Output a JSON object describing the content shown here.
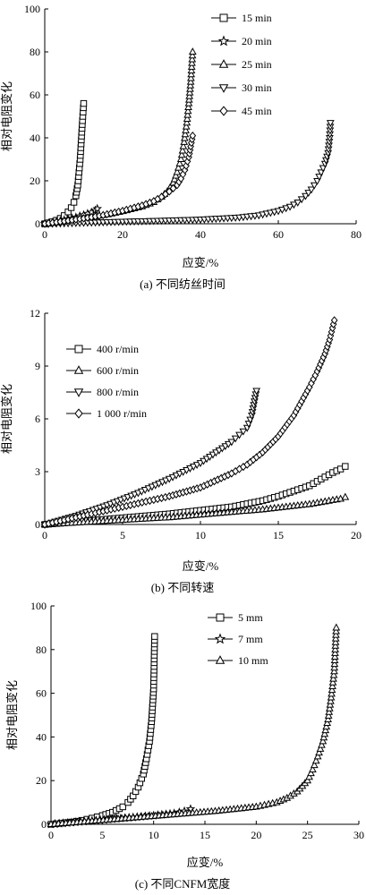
{
  "chart_data": [
    {
      "type": "scatter",
      "caption": "(a) 不同纺丝时间",
      "xlabel": "应变/%",
      "ylabel": "相对电阻变化",
      "xlim": [
        0,
        80
      ],
      "ylim": [
        0,
        100
      ],
      "xticks": [
        "0",
        "20",
        "40",
        "60",
        "80"
      ],
      "yticks": [
        "0",
        "20",
        "40",
        "60",
        "80",
        "100"
      ],
      "legend_position": "top-right",
      "series": [
        {
          "name": "15 min",
          "marker": "square",
          "x": [
            0,
            1,
            2,
            3,
            4,
            5,
            6,
            6.8,
            7.5,
            8,
            8.5,
            8.8,
            9.1,
            9.4,
            9.7,
            10
          ],
          "y": [
            0,
            0.4,
            0.9,
            1.6,
            2.5,
            3.8,
            5.5,
            7.5,
            10,
            13,
            18,
            24,
            30,
            39,
            48,
            56
          ]
        },
        {
          "name": "20 min",
          "marker": "star",
          "x": [
            0,
            2,
            4,
            6,
            8,
            10,
            12,
            13,
            13.5
          ],
          "y": [
            0,
            0.6,
            1.3,
            2.1,
            3,
            4.1,
            5.3,
            6.2,
            7
          ]
        },
        {
          "name": "25 min",
          "marker": "triangle-up",
          "x": [
            0,
            5,
            10,
            15,
            20,
            25,
            28,
            30,
            31.5,
            33,
            34,
            35,
            35.8,
            36.5,
            37,
            37.5,
            38
          ],
          "y": [
            0,
            1.2,
            2.5,
            4,
            5.8,
            8,
            10,
            12.5,
            15,
            19,
            24,
            30,
            38,
            47,
            56,
            66,
            80
          ]
        },
        {
          "name": "30 min",
          "marker": "triangle-down",
          "x": [
            0,
            10,
            20,
            30,
            40,
            50,
            55,
            60,
            63,
            65,
            67,
            68.5,
            70,
            71,
            72,
            72.8,
            73.2,
            73.4
          ],
          "y": [
            0,
            0.5,
            1,
            1.5,
            2,
            3,
            4,
            6,
            8,
            10,
            13,
            16,
            20,
            24,
            28,
            33,
            40,
            47
          ]
        },
        {
          "name": "45 min",
          "marker": "diamond",
          "x": [
            0,
            5,
            10,
            15,
            20,
            25,
            28,
            30,
            32,
            34,
            35,
            36,
            37,
            37.5,
            38
          ],
          "y": [
            0,
            1.2,
            2.5,
            4,
            6,
            8.5,
            10.5,
            12.5,
            15,
            18,
            21,
            25,
            31,
            36,
            41
          ]
        }
      ]
    },
    {
      "type": "scatter",
      "caption": "(b) 不同转速",
      "xlabel": "应变/%",
      "ylabel": "相对电阻变化",
      "xlim": [
        0,
        20
      ],
      "ylim": [
        0,
        12
      ],
      "xticks": [
        "0",
        "5",
        "10",
        "15",
        "20"
      ],
      "yticks": [
        "0",
        "3",
        "6",
        "9",
        "12"
      ],
      "legend_position": "top-left",
      "series": [
        {
          "name": "400 r/min",
          "marker": "square",
          "x": [
            0,
            2,
            4,
            6,
            8,
            10,
            12,
            14,
            15,
            16,
            17,
            17.5,
            18,
            18.5,
            19,
            19.3
          ],
          "y": [
            0,
            0.15,
            0.3,
            0.45,
            0.6,
            0.8,
            1.0,
            1.35,
            1.6,
            1.9,
            2.2,
            2.45,
            2.7,
            2.95,
            3.15,
            3.3
          ]
        },
        {
          "name": "600 r/min",
          "marker": "triangle-up",
          "x": [
            0,
            2,
            4,
            6,
            8,
            10,
            12,
            14,
            16,
            17,
            18,
            18.5,
            19,
            19.3
          ],
          "y": [
            0,
            0.1,
            0.2,
            0.3,
            0.4,
            0.55,
            0.7,
            0.85,
            1.05,
            1.15,
            1.3,
            1.38,
            1.45,
            1.55
          ]
        },
        {
          "name": "800 r/min",
          "marker": "triangle-down",
          "x": [
            0,
            2,
            4,
            6,
            8,
            10,
            11,
            12,
            12.5,
            13,
            13.3,
            13.6
          ],
          "y": [
            0,
            0.5,
            1.1,
            1.8,
            2.6,
            3.5,
            4.1,
            4.7,
            5.1,
            5.5,
            6.2,
            7.6
          ]
        },
        {
          "name": "1 000 r/min",
          "marker": "diamond",
          "x": [
            0,
            2,
            4,
            6,
            8,
            10,
            12,
            13,
            14,
            15,
            16,
            16.5,
            17,
            17.5,
            18,
            18.3,
            18.6
          ],
          "y": [
            0,
            0.4,
            0.8,
            1.2,
            1.6,
            2.1,
            2.9,
            3.4,
            4.1,
            5,
            6.2,
            7,
            7.8,
            8.7,
            9.7,
            10.5,
            11.6
          ]
        }
      ]
    },
    {
      "type": "scatter",
      "caption": "(c) 不同CNFM宽度",
      "xlabel": "应变/%",
      "ylabel": "相对电阻变化",
      "xlim": [
        0,
        30
      ],
      "ylim": [
        0,
        100
      ],
      "xticks": [
        "0",
        "5",
        "10",
        "15",
        "20",
        "25",
        "30"
      ],
      "yticks": [
        "0",
        "20",
        "40",
        "60",
        "80",
        "100"
      ],
      "legend_position": "top-left",
      "series": [
        {
          "name": "5 mm",
          "marker": "square",
          "x": [
            0,
            1,
            2,
            3,
            4,
            5,
            6,
            7,
            7.5,
            8,
            8.5,
            9,
            9.3,
            9.6,
            9.8,
            10,
            10.1
          ],
          "y": [
            0,
            0.5,
            1,
            1.8,
            2.8,
            4,
            5.5,
            8,
            10,
            13,
            17,
            23,
            30,
            38,
            47,
            62,
            86
          ]
        },
        {
          "name": "7 mm",
          "marker": "star",
          "x": [
            0,
            2,
            4,
            6,
            8,
            10,
            12,
            13,
            13.6
          ],
          "y": [
            0,
            0.8,
            1.6,
            2.4,
            3.2,
            4,
            5,
            6,
            7
          ]
        },
        {
          "name": "10 mm",
          "marker": "triangle-up",
          "x": [
            0,
            4,
            8,
            12,
            16,
            20,
            22,
            23,
            24,
            25,
            25.5,
            26,
            26.5,
            27,
            27.3,
            27.6,
            27.8
          ],
          "y": [
            0,
            1.5,
            3,
            4.5,
            6,
            8,
            10,
            12,
            15,
            20,
            25,
            31,
            38,
            48,
            58,
            70,
            90
          ]
        }
      ]
    }
  ]
}
